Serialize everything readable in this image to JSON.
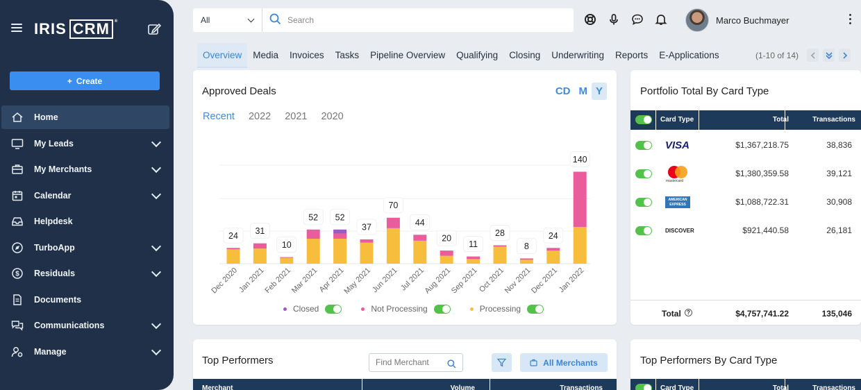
{
  "app": {
    "logo_left": "IRIS",
    "logo_right": "CRM",
    "logo_tm": "®"
  },
  "sidebar": {
    "create_label": "Create",
    "items": [
      {
        "label": "Home",
        "icon": "home-icon",
        "active": true,
        "expandable": false
      },
      {
        "label": "My Leads",
        "icon": "monitor-icon",
        "active": false,
        "expandable": true
      },
      {
        "label": "My Merchants",
        "icon": "briefcase-icon",
        "active": false,
        "expandable": true
      },
      {
        "label": "Calendar",
        "icon": "calendar-icon",
        "active": false,
        "expandable": true
      },
      {
        "label": "Helpdesk",
        "icon": "inbox-icon",
        "active": false,
        "expandable": false
      },
      {
        "label": "TurboApp",
        "icon": "compass-icon",
        "active": false,
        "expandable": true
      },
      {
        "label": "Residuals",
        "icon": "dollar-icon",
        "active": false,
        "expandable": true
      },
      {
        "label": "Documents",
        "icon": "document-icon",
        "active": false,
        "expandable": false
      },
      {
        "label": "Communications",
        "icon": "chat-icon",
        "active": false,
        "expandable": true
      },
      {
        "label": "Manage",
        "icon": "user-gear-icon",
        "active": false,
        "expandable": true
      }
    ]
  },
  "search": {
    "scope": "All",
    "placeholder": "Search",
    "value": ""
  },
  "user": {
    "name": "Marco Buchmayer"
  },
  "tabs": [
    "Overview",
    "Media",
    "Invoices",
    "Tasks",
    "Pipeline Overview",
    "Qualifying",
    "Closing",
    "Underwriting",
    "Reports",
    "E-Applications"
  ],
  "active_tab": "Overview",
  "pager": {
    "text": "(1-10 of 14)"
  },
  "approved_deals": {
    "title": "Approved Deals",
    "ranges": [
      "CD",
      "M",
      "Y"
    ],
    "selected_range": "Y",
    "years": [
      "Recent",
      "2022",
      "2021",
      "2020"
    ],
    "selected_year": "Recent",
    "legend": [
      {
        "label": "Closed",
        "color": "#9b59c6"
      },
      {
        "label": "Not Processing",
        "color": "#e95d9c"
      },
      {
        "label": "Processing",
        "color": "#f7be3e"
      }
    ]
  },
  "chart_data": {
    "type": "bar",
    "stacked": true,
    "title": "Approved Deals",
    "categories": [
      "Dec 2020",
      "Jan 2021",
      "Feb 2021",
      "Mar 2021",
      "Apr 2021",
      "May 2021",
      "Jun 2021",
      "Jul 2021",
      "Aug 2021",
      "Sep 2021",
      "Oct 2021",
      "Nov 2021",
      "Dec 2021",
      "Jan 2022"
    ],
    "totals": [
      24,
      31,
      10,
      52,
      52,
      37,
      70,
      44,
      20,
      11,
      28,
      8,
      24,
      140
    ],
    "series": [
      {
        "name": "Closed",
        "values": [
          0,
          0,
          0,
          0,
          6,
          0,
          0,
          0,
          0,
          0,
          0,
          0,
          0,
          0
        ]
      },
      {
        "name": "Not Processing",
        "values": [
          2,
          8,
          1,
          14,
          8,
          5,
          16,
          9,
          8,
          4,
          2,
          2,
          4,
          84
        ]
      },
      {
        "name": "Processing",
        "values": [
          22,
          23,
          9,
          38,
          38,
          32,
          54,
          35,
          12,
          7,
          26,
          6,
          20,
          56
        ]
      }
    ],
    "ylim": [
      0,
      150
    ],
    "grid": true
  },
  "portfolio": {
    "title": "Portfolio Total By Card Type",
    "headers": {
      "card_type": "Card Type",
      "total": "Total",
      "transactions": "Transactions"
    },
    "rows": [
      {
        "card": "VISA",
        "total": "$1,367,218.75",
        "transactions": "38,836"
      },
      {
        "card": "mastercard",
        "total": "$1,380,359.58",
        "transactions": "39,121"
      },
      {
        "card": "AMERICAN EXPRESS",
        "total": "$1,088,722.31",
        "transactions": "30,908"
      },
      {
        "card": "DISCOVER",
        "total": "$921,440.58",
        "transactions": "26,181"
      }
    ],
    "total_label": "Total",
    "total_value": "$4,757,741.22",
    "total_transactions": "135,046"
  },
  "top_performers": {
    "title": "Top Performers",
    "find_placeholder": "Find Merchant",
    "all_merchants_label": "All Merchants",
    "headers": {
      "merchant": "Merchant",
      "volume": "Volume",
      "transactions": "Transactions"
    }
  },
  "top_performers_card": {
    "title": "Top Performers By Card Type",
    "headers": {
      "card_type": "Card Type",
      "total": "Total",
      "transactions": "Transactions"
    }
  }
}
